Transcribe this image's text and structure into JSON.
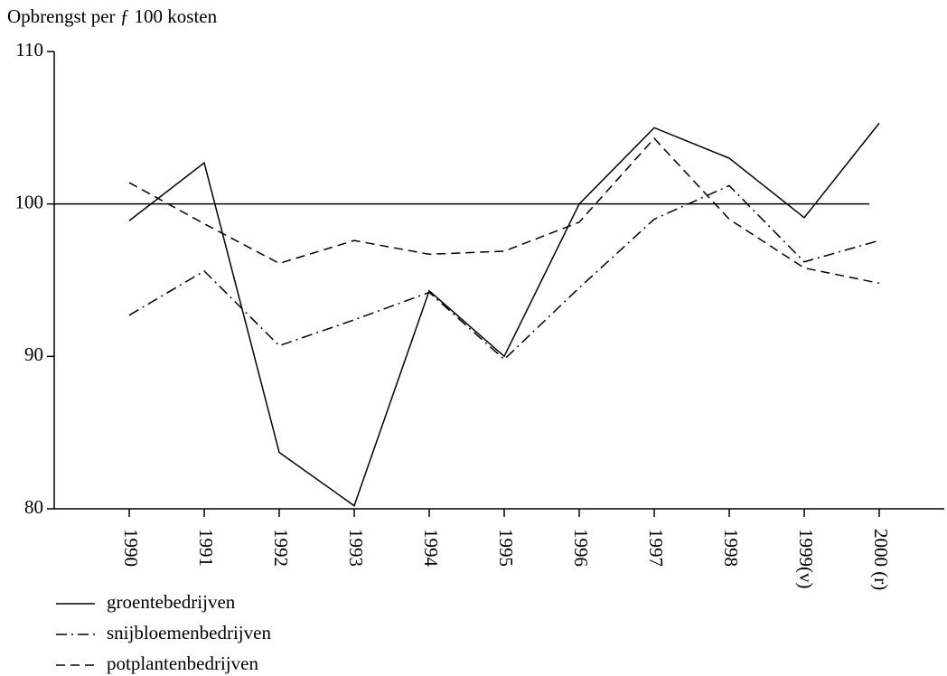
{
  "chart_data": {
    "type": "line",
    "y_axis_label": "Opbrengst per ƒ 100 kosten",
    "categories": [
      "1990",
      "1991",
      "1992",
      "1993",
      "1994",
      "1995",
      "1996",
      "1997",
      "1998",
      "1999(v)",
      "2000 (r)"
    ],
    "series": [
      {
        "name": "groentebedrijven",
        "color": "#000000",
        "style": "solid",
        "values": [
          98.9,
          102.7,
          83.7,
          80.2,
          94.3,
          90.0,
          100.0,
          105.0,
          103.0,
          99.1,
          105.3
        ]
      },
      {
        "name": "snijbloemenbedrijven",
        "color": "#000000",
        "style": "dashdot",
        "values": [
          92.7,
          95.6,
          90.7,
          92.4,
          94.2,
          89.8,
          94.5,
          99.0,
          101.2,
          96.2,
          97.6
        ]
      },
      {
        "name": "potplantenbedrijven",
        "color": "#000000",
        "style": "dashed",
        "values": [
          101.4,
          98.7,
          96.1,
          97.6,
          96.7,
          96.9,
          98.8,
          104.3,
          99.0,
          95.8,
          94.8
        ]
      }
    ],
    "reference_line": 100,
    "ylim": [
      80,
      110
    ],
    "yticks": [
      80,
      90,
      100,
      110
    ]
  }
}
